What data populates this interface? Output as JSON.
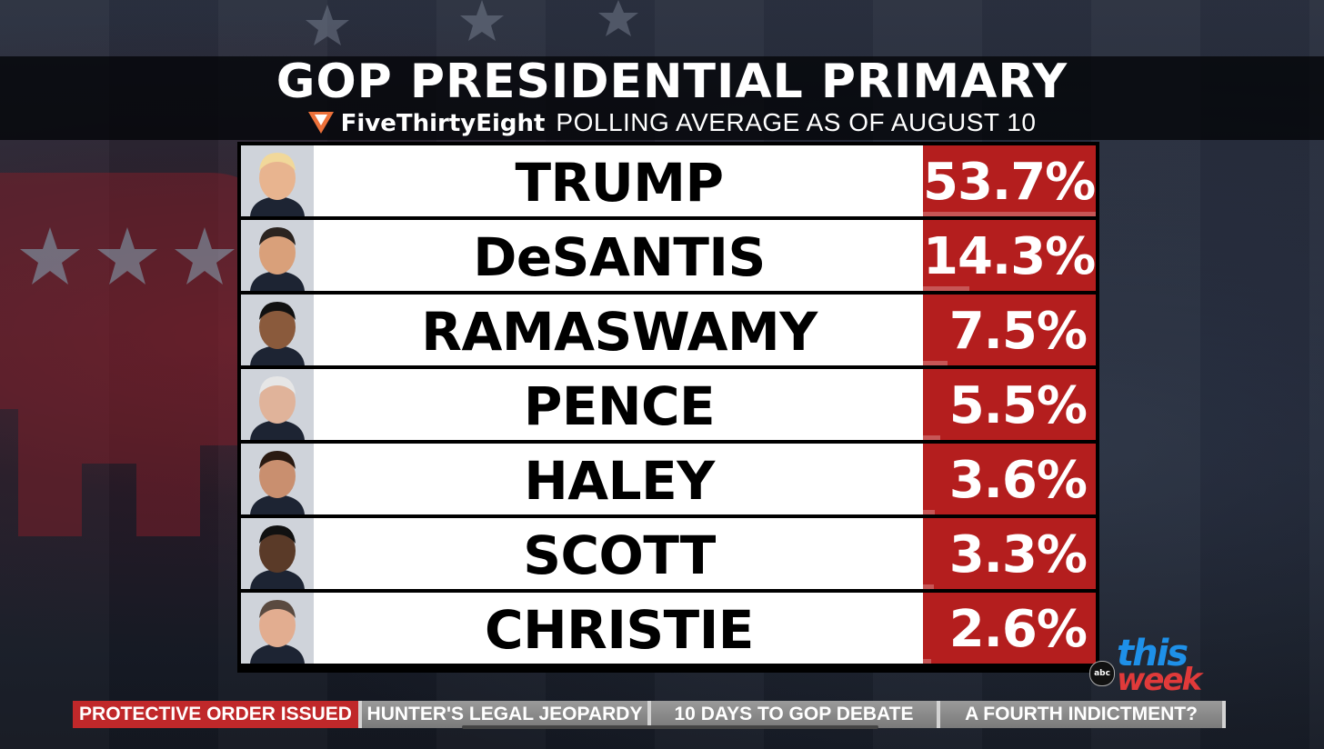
{
  "title": "GOP PRESIDENTIAL PRIMARY",
  "subtitle": {
    "brand": "FiveThirtyEight",
    "rest": "POLLING AVERAGE AS OF AUGUST 10"
  },
  "colors": {
    "accent_red": "#b41e1e",
    "row_bg": "#ffffff",
    "ticker_active": "#c0282a",
    "this_blue": "#1e90e8",
    "week_red": "#e03a3a",
    "logo_orange": "#ed713a"
  },
  "chart_data": {
    "type": "table",
    "title": "GOP PRESIDENTIAL PRIMARY",
    "subtitle": "FiveThirtyEight POLLING AVERAGE AS OF AUGUST 10",
    "columns": [
      "candidate",
      "polling_average_pct"
    ],
    "rows": [
      {
        "name": "TRUMP",
        "label": "53.7%",
        "value": 53.7
      },
      {
        "name": "DeSANTIS",
        "label": "14.3%",
        "value": 14.3
      },
      {
        "name": "RAMASWAMY",
        "label": "7.5%",
        "value": 7.5
      },
      {
        "name": "PENCE",
        "label": "5.5%",
        "value": 5.5
      },
      {
        "name": "HALEY",
        "label": "3.6%",
        "value": 3.6
      },
      {
        "name": "SCOTT",
        "label": "3.3%",
        "value": 3.3
      },
      {
        "name": "CHRISTIE",
        "label": "2.6%",
        "value": 2.6
      }
    ]
  },
  "ticker": {
    "items": [
      {
        "label": "PROTECTIVE ORDER ISSUED",
        "active": true
      },
      {
        "label": "HUNTER'S LEGAL JEOPARDY",
        "active": false
      },
      {
        "label": "10 DAYS TO GOP DEBATE",
        "active": false
      },
      {
        "label": "A FOURTH INDICTMENT?",
        "active": false
      }
    ]
  },
  "show_bug": {
    "network": "abc",
    "line1": "this",
    "line2": "week"
  }
}
